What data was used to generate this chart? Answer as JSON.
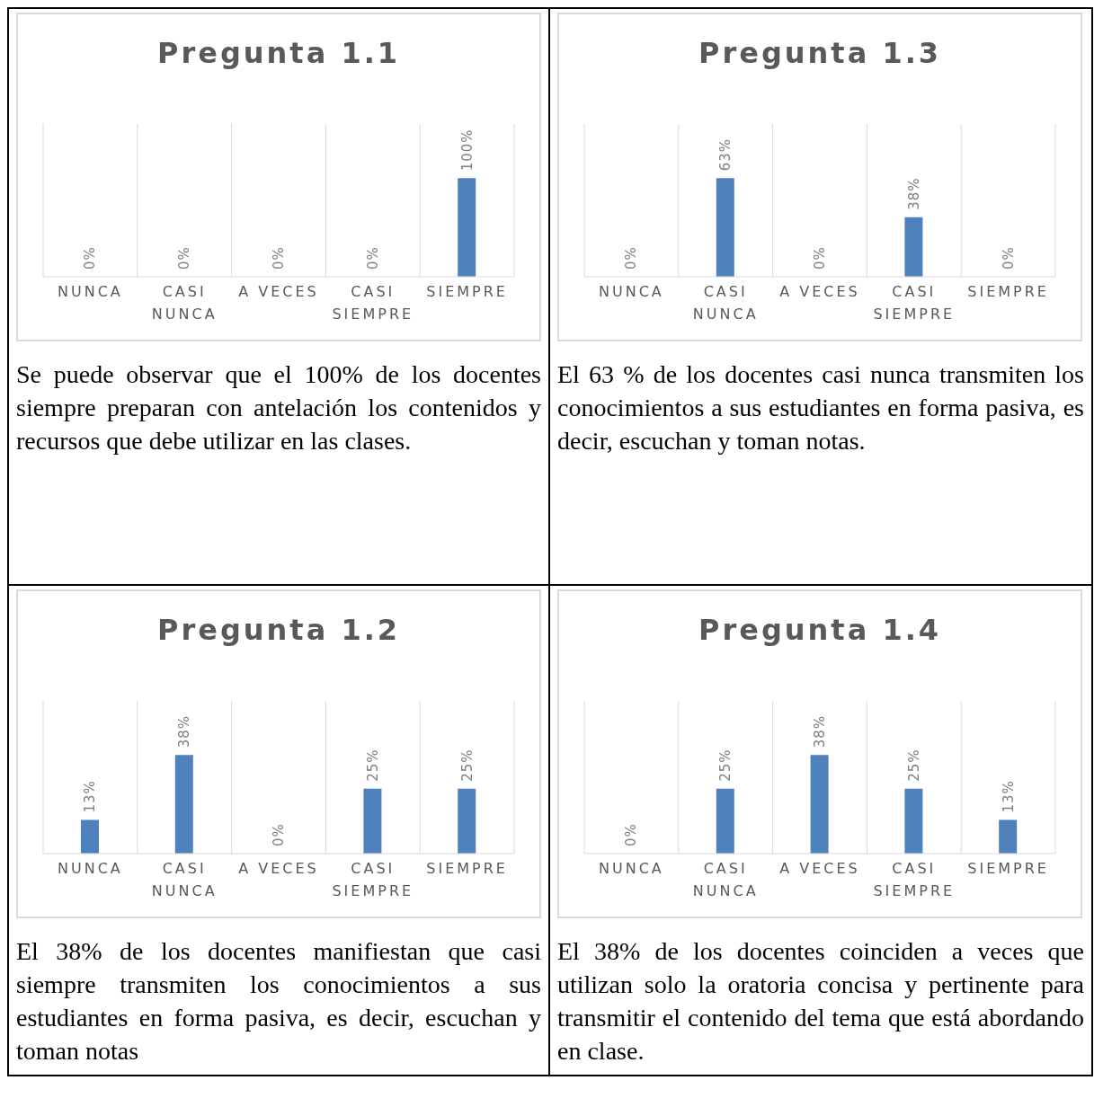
{
  "chart_data": [
    {
      "type": "bar",
      "title": "Pregunta 1.1",
      "categories": [
        "NUNCA",
        "CASI NUNCA",
        "A VECES",
        "CASI SIEMPRE",
        "SIEMPRE"
      ],
      "values": [
        0,
        0,
        0,
        0,
        100
      ],
      "value_labels": [
        "0%",
        "0%",
        "0%",
        "0%",
        "100%"
      ],
      "color": "#4f81bd",
      "grid": "x",
      "annotations": [
        "Se puede observar que el 100% de los docentes siempre preparan con antelación los contenidos y recursos que debe utilizar en las clases."
      ]
    },
    {
      "type": "bar",
      "title": "Pregunta 1.3",
      "categories": [
        "NUNCA",
        "CASI NUNCA",
        "A VECES",
        "CASI SIEMPRE",
        "SIEMPRE"
      ],
      "values": [
        0,
        63,
        0,
        38,
        0
      ],
      "value_labels": [
        "0%",
        "63%",
        "0%",
        "38%",
        "0%"
      ],
      "color": "#4f81bd",
      "grid": "x",
      "annotations": [
        "El 63 % de los docentes casi nunca transmiten los conocimientos a sus estudiantes en forma pasiva, es decir, escuchan y toman notas."
      ]
    },
    {
      "type": "bar",
      "title": "Pregunta 1.2",
      "categories": [
        "NUNCA",
        "CASI NUNCA",
        "A VECES",
        "CASI SIEMPRE",
        "SIEMPRE"
      ],
      "values": [
        13,
        38,
        0,
        25,
        25
      ],
      "value_labels": [
        "13%",
        "38%",
        "0%",
        "25%",
        "25%"
      ],
      "color": "#4f81bd",
      "grid": "x",
      "annotations": [
        "El 38% de los docentes manifiestan que casi siempre transmiten los conocimientos a sus estudiantes en forma pasiva, es decir, escuchan y toman notas"
      ]
    },
    {
      "type": "bar",
      "title": "Pregunta 1.4",
      "categories": [
        "NUNCA",
        "CASI NUNCA",
        "A VECES",
        "CASI SIEMPRE",
        "SIEMPRE"
      ],
      "values": [
        0,
        25,
        38,
        25,
        13
      ],
      "value_labels": [
        "0%",
        "25%",
        "38%",
        "25%",
        "13%"
      ],
      "color": "#4f81bd",
      "grid": "x",
      "annotations": [
        "El 38% de los docentes coinciden a veces que utilizan solo la oratoria concisa y pertinente para transmitir el contenido del tema que está abordando en clase."
      ]
    }
  ]
}
